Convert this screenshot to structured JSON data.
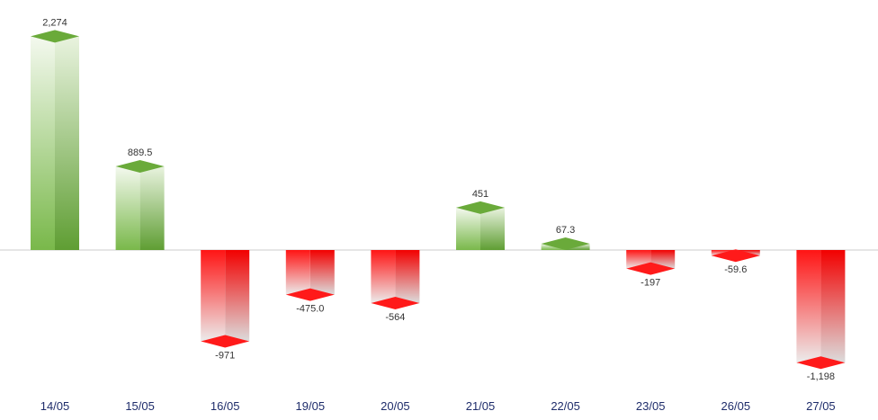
{
  "chart_data": {
    "type": "bar",
    "categories": [
      "14/05",
      "15/05",
      "16/05",
      "19/05",
      "20/05",
      "21/05",
      "22/05",
      "23/05",
      "26/05",
      "27/05"
    ],
    "values": [
      2274,
      889.5,
      -971,
      -475.0,
      -564,
      451,
      67.3,
      -197,
      -59.6,
      -1198
    ],
    "value_labels": [
      "2,274",
      "889.5",
      "-971",
      "-475.0",
      "-564",
      "451",
      "67.3",
      "-197",
      "-59.6",
      "-1,198"
    ],
    "ylim": [
      -1350,
      2450
    ],
    "grid": false,
    "style": "3d-gradient",
    "colors": {
      "positive": "#6aaa3a",
      "positive_light": "#e6f2dc",
      "negative": "#ff1a1a",
      "negative_light": "#e8e8e8",
      "axis": "#cccccc"
    }
  }
}
